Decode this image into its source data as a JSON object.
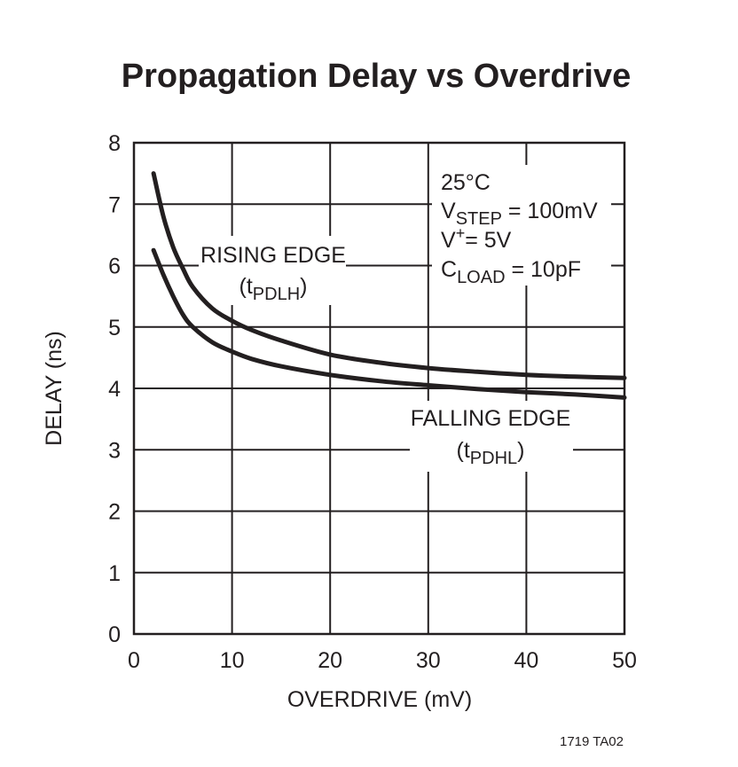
{
  "chart_data": {
    "type": "line",
    "title": "Propagation Delay vs Overdrive",
    "xlabel": "OVERDRIVE (mV)",
    "ylabel": "DELAY (ns)",
    "xlim": [
      0,
      50
    ],
    "ylim": [
      0,
      8
    ],
    "xticks": [
      "0",
      "10",
      "20",
      "30",
      "40",
      "50"
    ],
    "yticks": [
      "0",
      "1",
      "2",
      "3",
      "4",
      "5",
      "6",
      "7",
      "8"
    ],
    "grid": true,
    "series": [
      {
        "name": "RISING EDGE (tPDLH)",
        "x": [
          2,
          3,
          4,
          5,
          6,
          8,
          10,
          12,
          15,
          20,
          25,
          30,
          35,
          40,
          45,
          50
        ],
        "y": [
          7.5,
          6.8,
          6.3,
          5.95,
          5.65,
          5.3,
          5.1,
          4.95,
          4.78,
          4.55,
          4.42,
          4.33,
          4.27,
          4.22,
          4.19,
          4.17
        ]
      },
      {
        "name": "FALLING EDGE (tPDHL)",
        "x": [
          2,
          3,
          4,
          5,
          6,
          8,
          10,
          12,
          15,
          20,
          25,
          30,
          35,
          40,
          45,
          50
        ],
        "y": [
          6.25,
          5.85,
          5.5,
          5.2,
          5.0,
          4.75,
          4.6,
          4.48,
          4.36,
          4.22,
          4.12,
          4.05,
          3.99,
          3.94,
          3.9,
          3.85
        ]
      }
    ],
    "annotations": {
      "rising_line1": "RISING EDGE",
      "rising_line2_pre": "(t",
      "rising_line2_sub": "PDLH",
      "rising_line2_post": ")",
      "falling_line1": "FALLING EDGE",
      "falling_line2_pre": "(t",
      "falling_line2_sub": "PDHL",
      "falling_line2_post": ")",
      "cond_temp": "25°C",
      "cond_vstep_pre": "V",
      "cond_vstep_sub": "STEP",
      "cond_vstep_post": " = 100mV",
      "cond_vplus_pre": "V",
      "cond_vplus_sup": "+",
      "cond_vplus_post": "= 5V",
      "cond_cload_pre": "C",
      "cond_cload_sub": "LOAD",
      "cond_cload_post": " = 10pF"
    },
    "figure_code": "1719 TA02"
  }
}
